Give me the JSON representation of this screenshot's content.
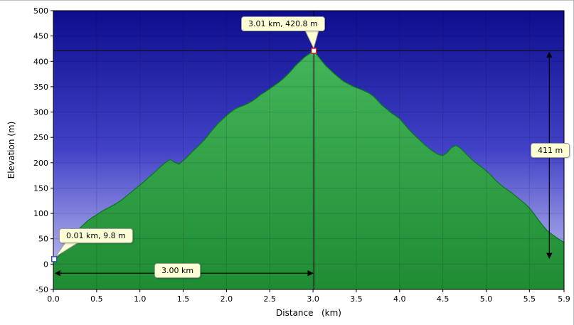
{
  "chart_data": {
    "type": "area",
    "title": "",
    "xlabel": "Distance   (km)",
    "ylabel": "Elevation (m)",
    "xlim": [
      0,
      5.9
    ],
    "ylim": [
      -50,
      500
    ],
    "grid": true,
    "x_ticks": [
      0.0,
      0.5,
      1.0,
      1.5,
      2.0,
      2.5,
      3.0,
      3.5,
      4.0,
      4.5,
      5.0,
      5.5,
      5.9
    ],
    "x_tick_labels": [
      "0.0",
      "0.5",
      "1.0",
      "1.5",
      "2.0",
      "2.5",
      "3.0",
      "3.5",
      "4.0",
      "4.5",
      "5.0",
      "5.5",
      "5.9"
    ],
    "y_ticks": [
      500,
      450,
      400,
      350,
      300,
      250,
      200,
      150,
      100,
      50,
      0,
      -50
    ],
    "y_tick_labels": [
      "500",
      "450",
      "400",
      "350",
      "300",
      "250",
      "200",
      "150",
      "100",
      "50",
      "0",
      "-50"
    ],
    "series": [
      {
        "name": "elevation-profile",
        "profile": [
          [
            0,
            10
          ],
          [
            0.05,
            14
          ],
          [
            0.1,
            22
          ],
          [
            0.15,
            35
          ],
          [
            0.2,
            52
          ],
          [
            0.25,
            62
          ],
          [
            0.3,
            70
          ],
          [
            0.35,
            78
          ],
          [
            0.4,
            86
          ],
          [
            0.45,
            92
          ],
          [
            0.5,
            97
          ],
          [
            0.55,
            103
          ],
          [
            0.6,
            108
          ],
          [
            0.65,
            112
          ],
          [
            0.7,
            117
          ],
          [
            0.75,
            122
          ],
          [
            0.8,
            128
          ],
          [
            0.85,
            135
          ],
          [
            0.9,
            142
          ],
          [
            0.95,
            149
          ],
          [
            1,
            156
          ],
          [
            1.05,
            163
          ],
          [
            1.1,
            171
          ],
          [
            1.15,
            178
          ],
          [
            1.2,
            186
          ],
          [
            1.25,
            194
          ],
          [
            1.3,
            201
          ],
          [
            1.35,
            206
          ],
          [
            1.4,
            201
          ],
          [
            1.45,
            197
          ],
          [
            1.5,
            204
          ],
          [
            1.55,
            212
          ],
          [
            1.6,
            221
          ],
          [
            1.65,
            229
          ],
          [
            1.7,
            237
          ],
          [
            1.75,
            246
          ],
          [
            1.8,
            257
          ],
          [
            1.85,
            267
          ],
          [
            1.9,
            277
          ],
          [
            1.95,
            285
          ],
          [
            2,
            293
          ],
          [
            2.05,
            300
          ],
          [
            2.1,
            306
          ],
          [
            2.15,
            310
          ],
          [
            2.2,
            313
          ],
          [
            2.25,
            317
          ],
          [
            2.3,
            322
          ],
          [
            2.35,
            328
          ],
          [
            2.4,
            335
          ],
          [
            2.45,
            340
          ],
          [
            2.5,
            346
          ],
          [
            2.55,
            352
          ],
          [
            2.6,
            358
          ],
          [
            2.65,
            365
          ],
          [
            2.7,
            373
          ],
          [
            2.75,
            382
          ],
          [
            2.8,
            392
          ],
          [
            2.85,
            400
          ],
          [
            2.9,
            408
          ],
          [
            2.95,
            414
          ],
          [
            3.01,
            420.8
          ],
          [
            3.05,
            412
          ],
          [
            3.1,
            401
          ],
          [
            3.15,
            391
          ],
          [
            3.2,
            383
          ],
          [
            3.25,
            375
          ],
          [
            3.3,
            368
          ],
          [
            3.35,
            361
          ],
          [
            3.4,
            356
          ],
          [
            3.45,
            352
          ],
          [
            3.5,
            348
          ],
          [
            3.55,
            345
          ],
          [
            3.6,
            341
          ],
          [
            3.65,
            337
          ],
          [
            3.7,
            331
          ],
          [
            3.75,
            322
          ],
          [
            3.8,
            313
          ],
          [
            3.85,
            306
          ],
          [
            3.9,
            299
          ],
          [
            3.95,
            293
          ],
          [
            4,
            287
          ],
          [
            4.05,
            277
          ],
          [
            4.1,
            267
          ],
          [
            4.15,
            258
          ],
          [
            4.2,
            250
          ],
          [
            4.25,
            242
          ],
          [
            4.3,
            234
          ],
          [
            4.35,
            227
          ],
          [
            4.4,
            221
          ],
          [
            4.45,
            216
          ],
          [
            4.5,
            214
          ],
          [
            4.55,
            220
          ],
          [
            4.6,
            230
          ],
          [
            4.65,
            234
          ],
          [
            4.7,
            229
          ],
          [
            4.75,
            221
          ],
          [
            4.8,
            212
          ],
          [
            4.85,
            204
          ],
          [
            4.9,
            197
          ],
          [
            4.95,
            191
          ],
          [
            5,
            184
          ],
          [
            5.05,
            176
          ],
          [
            5.1,
            167
          ],
          [
            5.15,
            159
          ],
          [
            5.2,
            152
          ],
          [
            5.25,
            146
          ],
          [
            5.3,
            140
          ],
          [
            5.35,
            133
          ],
          [
            5.4,
            126
          ],
          [
            5.45,
            119
          ],
          [
            5.5,
            111
          ],
          [
            5.55,
            100
          ],
          [
            5.6,
            88
          ],
          [
            5.65,
            77
          ],
          [
            5.7,
            67
          ],
          [
            5.75,
            60
          ],
          [
            5.8,
            54
          ],
          [
            5.85,
            48
          ],
          [
            5.9,
            43
          ]
        ]
      }
    ],
    "annotations": {
      "peak_label": "3.01 km, 420.8 m",
      "start_label": "0.01 km, 9.8 m",
      "height_label": "411 m",
      "distance_label": "3.00 km",
      "peak_x_km": 3.01,
      "peak_y_m": 420.8,
      "start_x_km": 0.01,
      "start_y_m": 9.8,
      "height_arrow": {
        "x_km": 5.73,
        "from_m": 9.8,
        "to_m": 420.8
      },
      "distance_arrow": {
        "y_m": -18,
        "from_km": 0.01,
        "to_km": 3.01
      }
    },
    "colors": {
      "bg_top": "#0d0d8e",
      "bg_mid": "#4242c8",
      "bg_bottom": "#ccccf4",
      "area_top": "#44b55a",
      "area_bottom": "#1f8c33",
      "area_outline": "#0b7a22",
      "annotation_line": "#000000",
      "peak_marker": "#cc2222",
      "start_marker": "#3050c8",
      "tooltip_bg": "#ffffd6",
      "tooltip_border": "#9c9c9c"
    }
  }
}
